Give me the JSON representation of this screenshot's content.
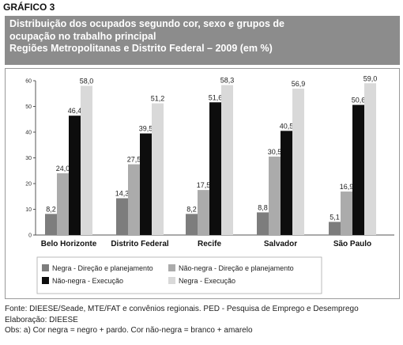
{
  "header": {
    "label": "GRÁFICO 3",
    "title_lines": [
      "Distribuição  dos ocupados segundo cor, sexo e grupos de",
      "ocupação no trabalho principal",
      "Regiões Metropolitanas e Distrito Federal – 2009 (em %)"
    ]
  },
  "chart_data": {
    "type": "bar",
    "title": "Distribuição  dos ocupados segundo cor, sexo e grupos de ocupação no trabalho principal — Regiões Metropolitanas e Distrito Federal – 2009 (em %)",
    "categories": [
      "Belo Horizonte",
      "Distrito Federal",
      "Recife",
      "Salvador",
      "São Paulo"
    ],
    "series": [
      {
        "name": "Negra - Direção e planejamento",
        "color": "#7d7d7d",
        "values": [
          8.2,
          14.3,
          8.2,
          8.8,
          5.1
        ],
        "labels": [
          "8,2",
          "14,3",
          "8,2",
          "8,8",
          "5,1"
        ]
      },
      {
        "name": "Não-negra - Direção e planejamento",
        "color": "#ababab",
        "values": [
          24.0,
          27.5,
          17.5,
          30.5,
          16.9
        ],
        "labels": [
          "24,0",
          "27,5",
          "17,5",
          "30,5",
          "16,9"
        ]
      },
      {
        "name": "Não-negra - Execução",
        "color": "#0d0d0d",
        "values": [
          46.4,
          39.5,
          51.6,
          40.5,
          50.6
        ],
        "labels": [
          "46,4",
          "39,5",
          "51,6",
          "40,5",
          "50,6"
        ]
      },
      {
        "name": "Negra - Execução",
        "color": "#d9d9d9",
        "values": [
          58.0,
          51.2,
          58.3,
          56.9,
          59.0
        ],
        "labels": [
          "58,0",
          "51,2",
          "58,3",
          "56,9",
          "59,0"
        ]
      }
    ],
    "ylim": [
      0,
      60
    ],
    "yticks": [
      "0",
      "10",
      "20",
      "30",
      "40",
      "50",
      "60"
    ],
    "grid": false,
    "legend_placement": "bottom",
    "xlabel": "",
    "ylabel": ""
  },
  "footer": {
    "source": "Fonte: DIEESE/Seade, MTE/FAT e convênios regionais. PED - Pesquisa de Emprego e Desemprego",
    "elaboration": "Elaboração: DIEESE",
    "note": "Obs: a)  Cor negra = negro + pardo. Cor não-negra = branco + amarelo"
  }
}
